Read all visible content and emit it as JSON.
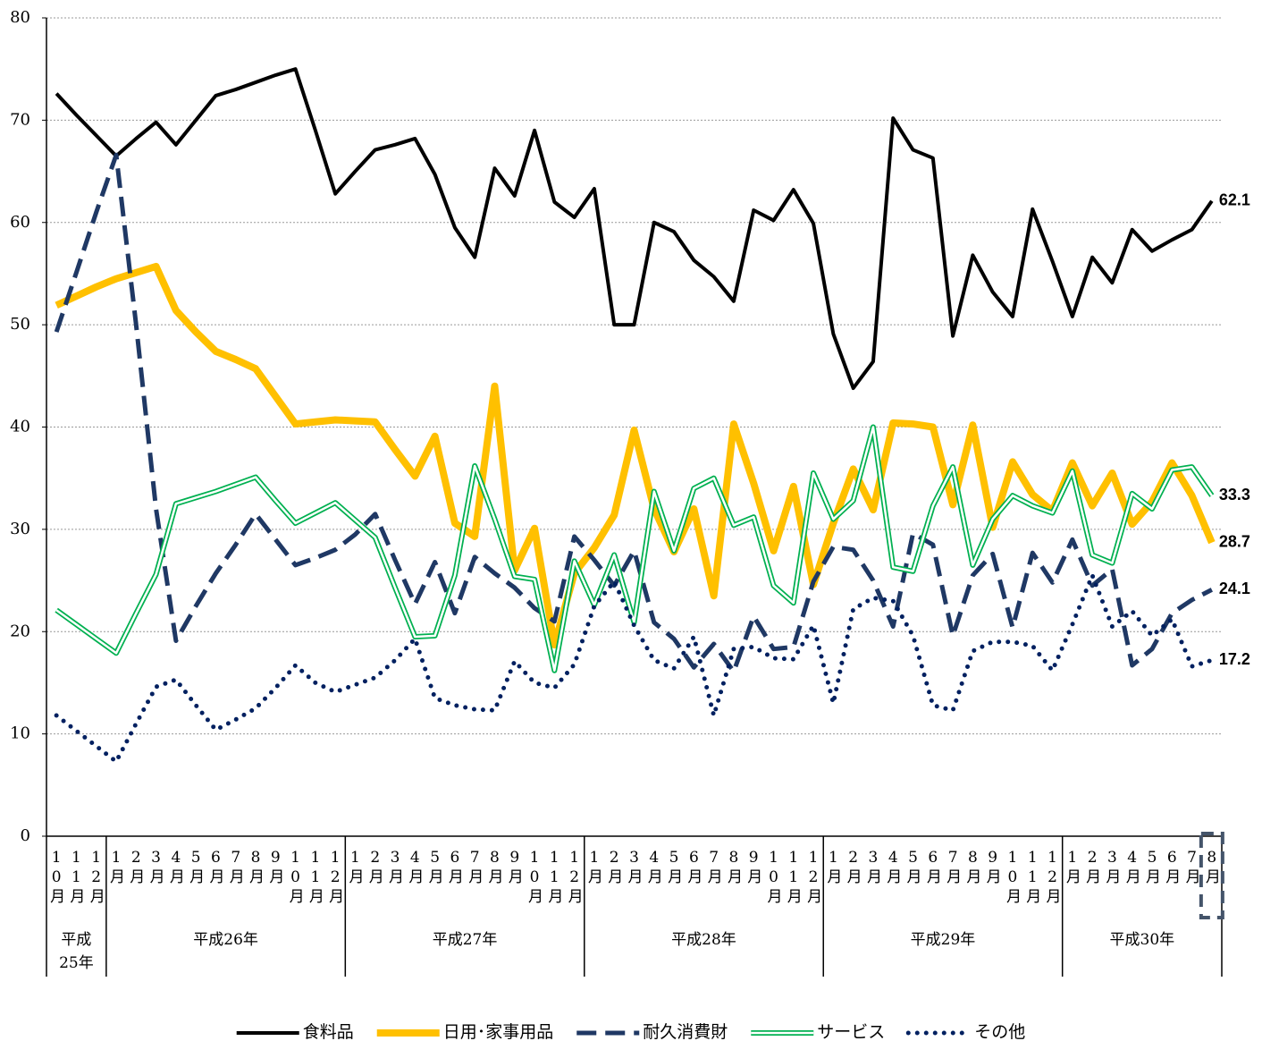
{
  "chart_data": {
    "type": "line",
    "groups": [
      {
        "label": "平成25年",
        "categories": [
          "10月",
          "11月",
          "12月"
        ]
      },
      {
        "label": "平成26年",
        "categories": [
          "1月",
          "2月",
          "3月",
          "4月",
          "5月",
          "6月",
          "7月",
          "8月",
          "9月",
          "10月",
          "11月",
          "12月"
        ]
      },
      {
        "label": "平成27年",
        "categories": [
          "1月",
          "2月",
          "3月",
          "4月",
          "5月",
          "6月",
          "7月",
          "8月",
          "9月",
          "10月",
          "11月",
          "12月"
        ]
      },
      {
        "label": "平成28年",
        "categories": [
          "1月",
          "2月",
          "3月",
          "4月",
          "5月",
          "6月",
          "7月",
          "8月",
          "9月",
          "10月",
          "11月",
          "12月"
        ]
      },
      {
        "label": "平成29年",
        "categories": [
          "1月",
          "2月",
          "3月",
          "4月",
          "5月",
          "6月",
          "7月",
          "8月",
          "9月",
          "10月",
          "11月",
          "12月"
        ]
      },
      {
        "label": "平成30年",
        "categories": [
          "1月",
          "2月",
          "3月",
          "4月",
          "5月",
          "6月",
          "7月",
          "8月"
        ]
      }
    ],
    "ylim": [
      0,
      80
    ],
    "yticks": [
      0,
      10,
      20,
      30,
      40,
      50,
      60,
      70,
      80
    ],
    "grid": true,
    "series": [
      {
        "name": "食料品",
        "color": "#000000",
        "style": "solid",
        "values": [
          72.6,
          70.5,
          68.5,
          66.5,
          68.2,
          69.8,
          67.6,
          70,
          72.4,
          73,
          73.7,
          74.4,
          75,
          69,
          62.8,
          65,
          67.1,
          67.6,
          68.2,
          64.7,
          59.5,
          56.6,
          65.3,
          62.6,
          69,
          62,
          60.5,
          63.3,
          50,
          50,
          60,
          59.1,
          56.3,
          54.7,
          52.3,
          61.2,
          60.2,
          63.2,
          59.9,
          49.1,
          43.8,
          46.4,
          70.2,
          67.1,
          66.3,
          48.9,
          56.8,
          53.2,
          50.8,
          61.3,
          56.2,
          50.8,
          56.6,
          54.1,
          59.3,
          57.2,
          58.3,
          59.3,
          62.1
        ]
      },
      {
        "name": "日用･家事用品",
        "color": "#ffc000",
        "style": "thick",
        "values": [
          51.9,
          52.8,
          53.7,
          54.5,
          55.1,
          55.7,
          51.4,
          49.3,
          47.4,
          46.6,
          45.7,
          43,
          40.3,
          40.5,
          40.7,
          40.6,
          40.5,
          37.8,
          35.2,
          39.1,
          30.6,
          29.3,
          44,
          26,
          30.1,
          18.7,
          25.7,
          28.2,
          31.4,
          39.7,
          32,
          27.8,
          32,
          23.5,
          40.3,
          34.5,
          27.9,
          34.2,
          24.6,
          30.6,
          35.9,
          31.9,
          40.4,
          40.3,
          40,
          32.4,
          40.2,
          30.2,
          36.6,
          33.4,
          31.8,
          36.5,
          32.3,
          35.5,
          30.5,
          32.7,
          36.5,
          33.3,
          28.7
        ]
      },
      {
        "name": "耐久消費財",
        "color": "#1f3864",
        "style": "dashed",
        "values": [
          49.3,
          55.1,
          61,
          66.6,
          50,
          32,
          19.1,
          22.5,
          25.7,
          28.5,
          31.5,
          29,
          26.5,
          27.2,
          28,
          29.5,
          31.5,
          27,
          22.7,
          26.8,
          21.8,
          27.3,
          25.7,
          24.3,
          22.3,
          21,
          29.3,
          27,
          24.5,
          27.9,
          20.9,
          19.3,
          16.5,
          18.8,
          16.1,
          21.5,
          18.3,
          18.5,
          24.9,
          28.3,
          28,
          25,
          20.5,
          29.6,
          28.5,
          19.6,
          25.5,
          27.6,
          20.4,
          27.7,
          24.8,
          29,
          24.5,
          26.1,
          16.7,
          18.3,
          21.8,
          23.1,
          24.1
        ]
      },
      {
        "name": "サービス",
        "color": "#00b050",
        "style": "double",
        "values": [
          22.1,
          20.7,
          19.3,
          17.9,
          21.8,
          25.6,
          32.5,
          33.1,
          33.7,
          34.4,
          35.1,
          32.8,
          30.6,
          31.6,
          32.6,
          30.9,
          29.2,
          24.3,
          19.5,
          19.6,
          25.5,
          36.2,
          31,
          25.4,
          25.1,
          16.2,
          26.9,
          22.6,
          27.5,
          20.9,
          33.7,
          27.9,
          34,
          35,
          30.4,
          31.2,
          24.5,
          22.8,
          35.5,
          31,
          32.8,
          40,
          26.3,
          25.9,
          32.3,
          36.1,
          26.5,
          31,
          33.3,
          32.3,
          31.6,
          35.7,
          27.5,
          26.7,
          33.5,
          32,
          35.8,
          36.1,
          33.3
        ]
      },
      {
        "name": "その他",
        "color": "#002060",
        "style": "dotted",
        "values": [
          11.8,
          10.3,
          8.8,
          7.3,
          11,
          14.6,
          15.3,
          12.8,
          10.4,
          11.4,
          12.5,
          14.5,
          16.7,
          15,
          14.1,
          14.8,
          15.5,
          17.2,
          19.3,
          13.5,
          12.8,
          12.4,
          12.3,
          17.1,
          15,
          14.5,
          16.8,
          22.5,
          24.9,
          20.6,
          17.2,
          16.4,
          19.5,
          11.8,
          18.3,
          18.5,
          17.4,
          17.3,
          20.6,
          13,
          22.2,
          23.3,
          23,
          19.6,
          12.8,
          12.3,
          18.1,
          19,
          19,
          18.6,
          16.2,
          20.7,
          25.5,
          20.5,
          22,
          19.6,
          21.2,
          16.6,
          17.2
        ]
      }
    ]
  }
}
